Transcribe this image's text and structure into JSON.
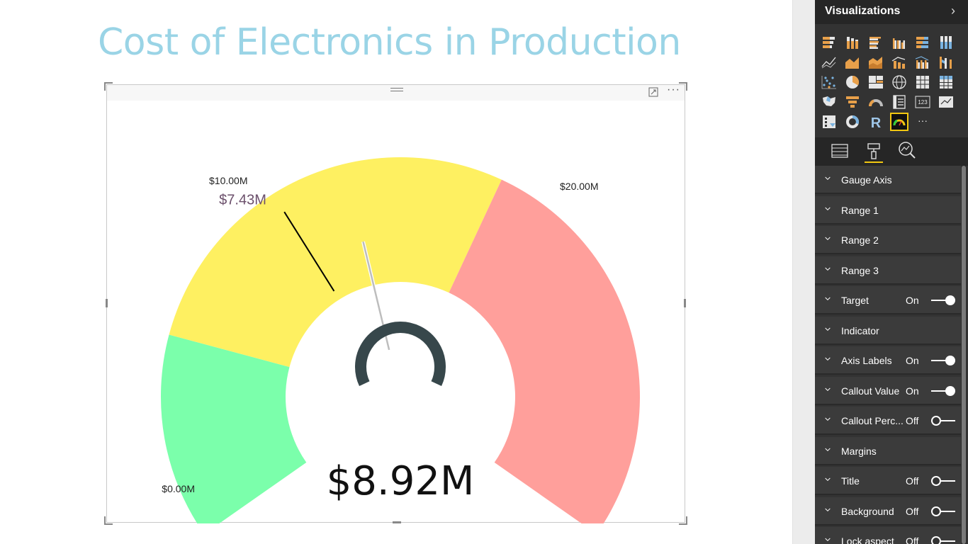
{
  "report": {
    "title": "Cost of Electronics in Production"
  },
  "visual_header": {
    "drag_icon": "drag-handle-icon",
    "focus_icon": "focus-mode-icon",
    "more_label": "···"
  },
  "chart_data": {
    "type": "gauge",
    "min": 0,
    "max": 20,
    "unit": "$M",
    "value": 8.92,
    "value_label": "$8.92M",
    "target": 7.43,
    "target_label": "$7.43M",
    "ranges": [
      {
        "from": 0,
        "to": 4,
        "color": "#7bffab"
      },
      {
        "from": 4,
        "to": 12,
        "color": "#fef061"
      },
      {
        "from": 12,
        "to": 20,
        "color": "#ff9f9b"
      }
    ],
    "axis_labels": [
      {
        "value": 0,
        "label": "$0.00M"
      },
      {
        "value": 10,
        "label": "$10.00M"
      },
      {
        "value": 20,
        "label": "$20.00M"
      }
    ],
    "needle_color": "#bdbdbd",
    "target_color": "#000000",
    "indicator_color": "#37474b"
  },
  "pane": {
    "title": "Visualizations",
    "chevron": "›",
    "viz_icons": [
      "stacked-bar-icon",
      "stacked-column-icon",
      "clustered-bar-icon",
      "clustered-column-icon",
      "100-bar-icon",
      "100-column-icon",
      "line-icon",
      "area-icon",
      "stacked-area-icon",
      "line-column-icon",
      "line-clustered-icon",
      "ribbon-icon",
      "scatter-icon",
      "pie-icon",
      "treemap-icon",
      "map-icon",
      "table-icon",
      "matrix-icon",
      "filled-map-icon",
      "funnel-icon",
      "gauge-icon",
      "multirow-card-icon",
      "card-icon",
      "kpi-icon",
      "slicer-icon",
      "donut-icon",
      "r-visual-icon",
      "custom-gauge-icon",
      "more-visuals-icon"
    ],
    "card_text": "123",
    "r_text": "R",
    "more_text": "···",
    "tabs": [
      "fields-tab-icon",
      "format-tab-icon",
      "analytics-tab-icon"
    ],
    "sections": [
      {
        "label": "Gauge Axis",
        "state": "",
        "toggle": ""
      },
      {
        "label": "Range 1",
        "state": "",
        "toggle": ""
      },
      {
        "label": "Range 2",
        "state": "",
        "toggle": ""
      },
      {
        "label": "Range 3",
        "state": "",
        "toggle": ""
      },
      {
        "label": "Target",
        "state": "On",
        "toggle": "on"
      },
      {
        "label": "Indicator",
        "state": "",
        "toggle": ""
      },
      {
        "label": "Axis Labels",
        "state": "On",
        "toggle": "on"
      },
      {
        "label": "Callout Value",
        "state": "On",
        "toggle": "on"
      },
      {
        "label": "Callout Perc...",
        "state": "Off",
        "toggle": "off"
      },
      {
        "label": "Margins",
        "state": "",
        "toggle": ""
      },
      {
        "label": "Title",
        "state": "Off",
        "toggle": "off"
      },
      {
        "label": "Background",
        "state": "Off",
        "toggle": "off"
      },
      {
        "label": "Lock aspect",
        "state": "Off",
        "toggle": "off"
      }
    ]
  }
}
